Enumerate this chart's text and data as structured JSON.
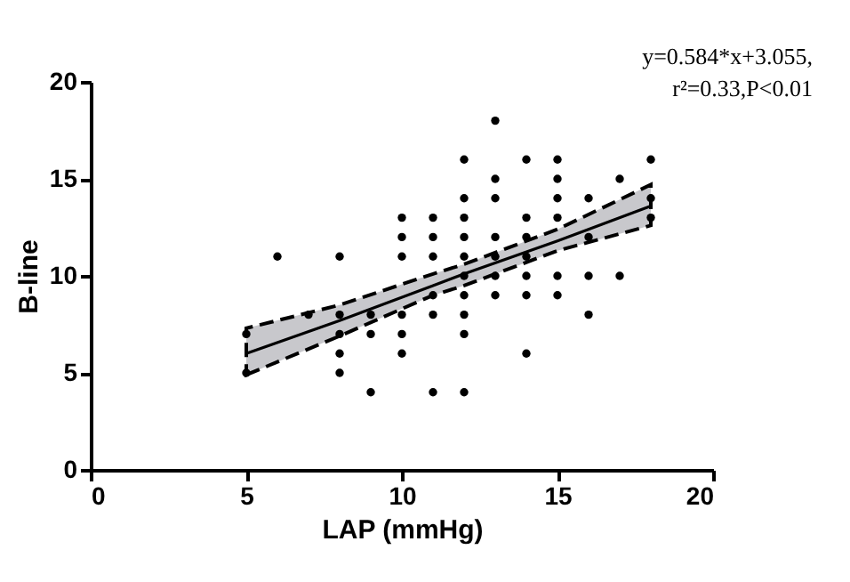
{
  "chart_data": {
    "type": "scatter",
    "xlabel": "LAP (mmHg)",
    "ylabel": "B-line",
    "xlim": [
      0,
      20
    ],
    "ylim": [
      0,
      20
    ],
    "xticks": [
      0,
      5,
      10,
      15,
      20
    ],
    "yticks": [
      0,
      5,
      10,
      15,
      20
    ],
    "grid": false,
    "annotations": [
      "y=0.584*x+3.055,",
      "r²=0.33,P<0.01"
    ],
    "series": [
      {
        "color": "#000000",
        "marker": "circle",
        "x": [
          5,
          5,
          6,
          7,
          8,
          8,
          8,
          8,
          8,
          9,
          9,
          9,
          10,
          10,
          10,
          10,
          10,
          10,
          11,
          11,
          11,
          11,
          11,
          11,
          12,
          12,
          12,
          12,
          12,
          12,
          12,
          12,
          12,
          12,
          13,
          13,
          13,
          13,
          13,
          13,
          13,
          14,
          14,
          14,
          14,
          14,
          14,
          14,
          15,
          15,
          15,
          15,
          15,
          15,
          16,
          16,
          16,
          16,
          17,
          17,
          18,
          18,
          18
        ],
        "values": [
          7,
          5,
          11,
          8,
          11,
          8,
          7,
          6,
          5,
          8,
          7,
          4,
          13,
          12,
          11,
          8,
          7,
          6,
          13,
          12,
          11,
          9,
          8,
          4,
          16,
          14,
          13,
          12,
          11,
          10,
          9,
          8,
          7,
          4,
          18,
          15,
          14,
          12,
          11,
          10,
          9,
          16,
          13,
          12,
          11,
          10,
          9,
          6,
          16,
          15,
          14,
          13,
          10,
          9,
          14,
          12,
          10,
          8,
          15,
          10,
          16,
          14,
          13
        ]
      },
      {
        "type": "line",
        "color": "#000000",
        "marker": "none",
        "line_style": "solid",
        "x": [
          5,
          8,
          11,
          12,
          15,
          18
        ],
        "values": [
          6.0,
          7.7,
          9.5,
          10.1,
          11.8,
          13.6
        ],
        "lower": [
          4.9,
          6.9,
          9.0,
          9.5,
          11.3,
          12.6
        ],
        "upper": [
          7.3,
          8.5,
          10.1,
          10.6,
          12.4,
          14.7
        ]
      }
    ]
  }
}
